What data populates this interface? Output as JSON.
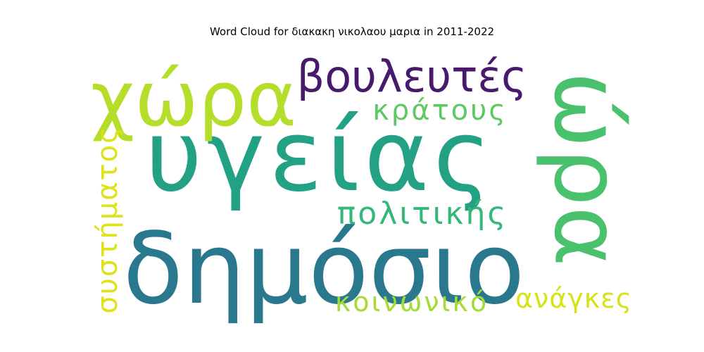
{
  "chart_data": {
    "type": "wordcloud",
    "title": "Word Cloud for διακακη νικολαου μαρια in 2011-2022",
    "words": [
      {
        "text": "υγείας",
        "color": "#22a185"
      },
      {
        "text": "δημόσιο",
        "color": "#2a788e"
      },
      {
        "text": "χώρα",
        "color": "#b5de2b"
      },
      {
        "text": "βουλευτές",
        "color": "#481a6c"
      },
      {
        "text": "ώρα",
        "color": "#4ac16d"
      },
      {
        "text": "κράτους",
        "color": "#5ec962"
      },
      {
        "text": "πολιτικής",
        "color": "#35b779"
      },
      {
        "text": "συστήματος",
        "color": "#dde318"
      },
      {
        "text": "κοινωνικό",
        "color": "#a5db36"
      },
      {
        "text": "ανάγκες",
        "color": "#d8e219"
      }
    ]
  }
}
